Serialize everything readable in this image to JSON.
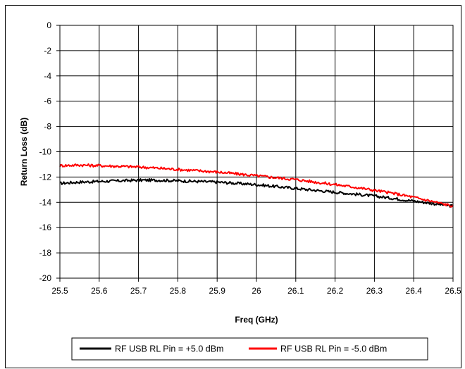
{
  "chart_data": {
    "type": "line",
    "title": "",
    "xlabel": "Freq (GHz)",
    "ylabel": "Return Loss (dB)",
    "xlim": [
      25.5,
      26.5
    ],
    "ylim": [
      -20,
      0
    ],
    "x_ticks": [
      "25.5",
      "25.6",
      "25.7",
      "25.8",
      "25.9",
      "26",
      "26.1",
      "26.2",
      "26.3",
      "26.4",
      "26.5"
    ],
    "y_ticks": [
      "0",
      "-2",
      "-4",
      "-6",
      "-8",
      "-10",
      "-12",
      "-14",
      "-16",
      "-18",
      "-20"
    ],
    "grid": true,
    "legend_position": "bottom",
    "x": [
      25.5,
      25.55,
      25.6,
      25.65,
      25.7,
      25.75,
      25.8,
      25.85,
      25.9,
      25.95,
      26.0,
      26.05,
      26.1,
      26.15,
      26.2,
      26.25,
      26.3,
      26.35,
      26.4,
      26.45,
      26.5
    ],
    "series": [
      {
        "name": "RF USB RL Pin = +5.0 dBm",
        "color": "#000000",
        "values": [
          -12.5,
          -12.4,
          -12.35,
          -12.3,
          -12.25,
          -12.25,
          -12.3,
          -12.35,
          -12.4,
          -12.5,
          -12.6,
          -12.75,
          -12.9,
          -13.05,
          -13.2,
          -13.35,
          -13.5,
          -13.7,
          -13.9,
          -14.1,
          -14.3
        ]
      },
      {
        "name": "RF USB RL Pin = -5.0 dBm",
        "color": "#ff0000",
        "values": [
          -11.1,
          -11.05,
          -11.1,
          -11.15,
          -11.2,
          -11.3,
          -11.4,
          -11.5,
          -11.6,
          -11.75,
          -11.9,
          -12.05,
          -12.2,
          -12.4,
          -12.6,
          -12.8,
          -13.05,
          -13.3,
          -13.6,
          -13.95,
          -14.3
        ]
      }
    ]
  }
}
